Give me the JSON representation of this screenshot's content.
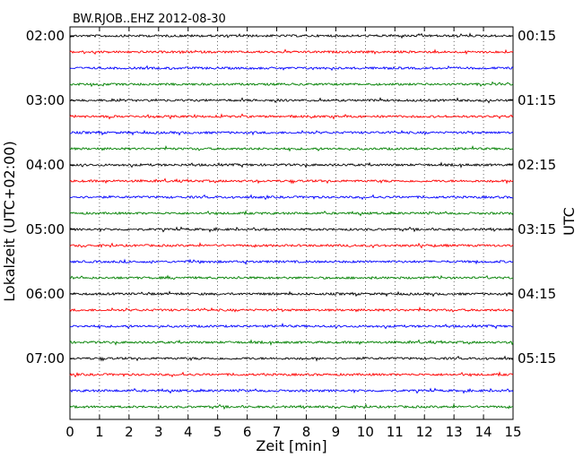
{
  "chart_data": {
    "type": "line",
    "title": "BW.RJOB..EHZ 2012-08-30",
    "xlabel": "Zeit  [min]",
    "ylabel_left": "Lokalzeit (UTC+02:00)",
    "ylabel_right": "UTC",
    "xlim": [
      0,
      15
    ],
    "x_ticks": [
      "0",
      "1",
      "2",
      "3",
      "4",
      "5",
      "6",
      "7",
      "8",
      "9",
      "10",
      "11",
      "12",
      "13",
      "14",
      "15"
    ],
    "left_ticks": [
      "02:00",
      "03:00",
      "04:00",
      "05:00",
      "06:00",
      "07:00"
    ],
    "right_ticks": [
      "00:15",
      "01:15",
      "02:15",
      "03:15",
      "04:15",
      "05:15"
    ],
    "trace_count": 24,
    "traces_per_hour": 4,
    "trace_colors": [
      "#000000",
      "#ff0000",
      "#0000ff",
      "#008000"
    ],
    "grid": "vertical dotted at each minute",
    "legend": "none"
  }
}
